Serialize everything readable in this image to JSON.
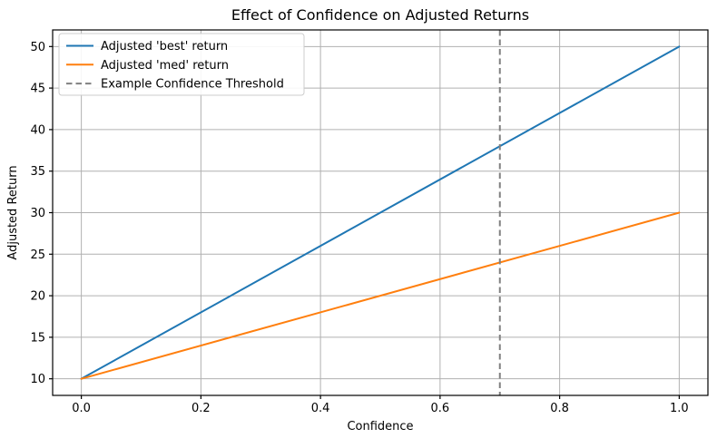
{
  "figure": {
    "background": "#ffffff",
    "spine_color": "#000000",
    "tick_color": "#000000"
  },
  "chart_data": {
    "type": "line",
    "title": "Effect of Confidence on Adjusted Returns",
    "xlabel": "Confidence",
    "ylabel": "Adjusted Return",
    "xlim": [
      -0.048,
      1.048
    ],
    "ylim": [
      8,
      52
    ],
    "grid": true,
    "grid_color": "#b0b0b0",
    "xticks": [
      {
        "value": 0.0,
        "label": "0.0"
      },
      {
        "value": 0.2,
        "label": "0.2"
      },
      {
        "value": 0.4,
        "label": "0.4"
      },
      {
        "value": 0.6,
        "label": "0.6"
      },
      {
        "value": 0.8,
        "label": "0.8"
      },
      {
        "value": 1.0,
        "label": "1.0"
      }
    ],
    "yticks": [
      {
        "value": 10,
        "label": "10"
      },
      {
        "value": 15,
        "label": "15"
      },
      {
        "value": 20,
        "label": "20"
      },
      {
        "value": 25,
        "label": "25"
      },
      {
        "value": 30,
        "label": "30"
      },
      {
        "value": 35,
        "label": "35"
      },
      {
        "value": 40,
        "label": "40"
      },
      {
        "value": 45,
        "label": "45"
      },
      {
        "value": 50,
        "label": "50"
      }
    ],
    "series": [
      {
        "name": "Adjusted 'best' return",
        "color": "#1f77b4",
        "line_style": "solid",
        "x": [
          0.0,
          1.0
        ],
        "y": [
          10,
          50
        ]
      },
      {
        "name": "Adjusted 'med' return",
        "color": "#ff7f0e",
        "line_style": "solid",
        "x": [
          0.0,
          1.0
        ],
        "y": [
          10,
          30
        ]
      }
    ],
    "vlines": [
      {
        "name": "Example Confidence Threshold",
        "x": 0.7,
        "color": "#808080",
        "line_style": "dashed"
      }
    ],
    "legend": {
      "position": "upper left",
      "border_color": "#cccccc",
      "background": "#ffffff",
      "entries": [
        {
          "label": "Adjusted 'best' return",
          "color": "#1f77b4",
          "line_style": "solid"
        },
        {
          "label": "Adjusted 'med' return",
          "color": "#ff7f0e",
          "line_style": "solid"
        },
        {
          "label": "Example Confidence Threshold",
          "color": "#808080",
          "line_style": "dashed"
        }
      ]
    }
  }
}
